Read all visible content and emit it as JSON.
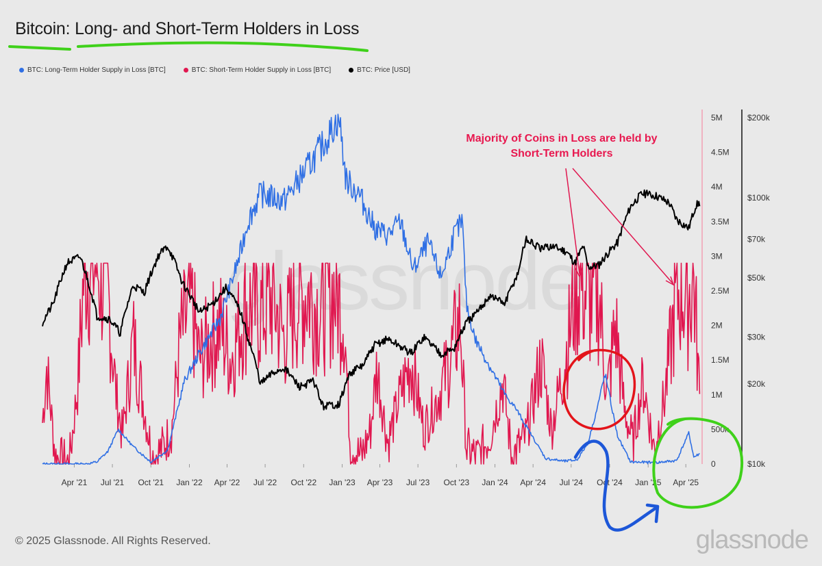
{
  "title": "Bitcoin: Long- and Short-Term Holders in Loss",
  "legend": [
    {
      "label": "BTC: Long-Term Holder Supply in Loss [BTC]",
      "color": "#2f6fe4"
    },
    {
      "label": "BTC: Short-Term Holder Supply in Loss [BTC]",
      "color": "#e0174f"
    },
    {
      "label": "BTC: Price [USD]",
      "color": "#000000"
    }
  ],
  "annotation": "Majority of Coins in Loss are held by Short-Term Holders",
  "watermark": "glassnode",
  "footer": "© 2025 Glassnode. All Rights Reserved.",
  "brand": "glassnode",
  "colors": {
    "lth": "#2f6fe4",
    "sth": "#e0174f",
    "price": "#000000",
    "axis_red": "#f2a0b4",
    "highlight_green": "#3fd11a",
    "highlight_red": "#e3141a",
    "highlight_blue": "#1d57d8"
  },
  "chart_data": {
    "type": "line",
    "x_ticks": [
      "Apr '21",
      "Jul '21",
      "Oct '21",
      "Jan '22",
      "Apr '22",
      "Jul '22",
      "Oct '22",
      "Jan '23",
      "Apr '23",
      "Jul '23",
      "Oct '23",
      "Jan '24",
      "Apr '24",
      "Jul '24",
      "Oct '24",
      "Jan '25",
      "Apr '25"
    ],
    "y_left_ticks": [
      "0",
      "500k",
      "1M",
      "1.5M",
      "2M",
      "2.5M",
      "3M",
      "3.5M",
      "4M",
      "4.5M",
      "5M"
    ],
    "y_left_range": [
      0,
      5000000
    ],
    "y_right_ticks": [
      "$10k",
      "$20k",
      "$30k",
      "$50k",
      "$70k",
      "$100k",
      "$200k"
    ],
    "y_right_range": [
      10000,
      200000
    ],
    "y_right_scale": "log",
    "x_range": [
      "2021-01-15",
      "2025-05-05"
    ],
    "series": [
      {
        "name": "BTC: Long-Term Holder Supply in Loss [BTC]",
        "x": [
          "2021-01-15",
          "2021-05-01",
          "2021-05-25",
          "2021-06-20",
          "2021-07-15",
          "2021-08-20",
          "2021-10-01",
          "2021-11-10",
          "2021-12-20",
          "2022-01-25",
          "2022-03-15",
          "2022-05-01",
          "2022-05-20",
          "2022-06-20",
          "2022-08-15",
          "2022-10-01",
          "2022-11-15",
          "2022-12-25",
          "2023-01-10",
          "2023-02-10",
          "2023-03-20",
          "2023-04-20",
          "2023-05-20",
          "2023-06-20",
          "2023-07-25",
          "2023-08-25",
          "2023-09-25",
          "2023-10-15",
          "2023-10-25",
          "2023-11-15",
          "2023-12-20",
          "2024-01-25",
          "2024-02-20",
          "2024-03-20",
          "2024-05-01",
          "2024-06-15",
          "2024-07-15",
          "2024-08-10",
          "2024-09-01",
          "2024-09-20",
          "2024-10-20",
          "2024-11-20",
          "2025-01-20",
          "2025-03-10",
          "2025-04-08",
          "2025-04-20",
          "2025-05-05"
        ],
        "values": [
          0,
          0,
          30000,
          180000,
          500000,
          250000,
          30000,
          200000,
          1200000,
          1600000,
          2100000,
          3000000,
          3500000,
          3900000,
          3800000,
          4200000,
          4600000,
          5000000,
          4100000,
          3900000,
          3400000,
          3300000,
          3500000,
          2800000,
          3200000,
          2700000,
          3300000,
          3500000,
          2300000,
          1800000,
          1400000,
          1000000,
          800000,
          500000,
          80000,
          40000,
          60000,
          300000,
          800000,
          1300000,
          400000,
          30000,
          20000,
          50000,
          450000,
          100000,
          150000
        ]
      },
      {
        "name": "BTC: Short-Term Holder Supply in Loss [BTC]",
        "x": [
          "2021-01-15",
          "2021-01-25",
          "2021-02-15",
          "2021-03-20",
          "2021-04-10",
          "2021-04-25",
          "2021-05-20",
          "2021-06-20",
          "2021-07-10",
          "2021-07-25",
          "2021-08-20",
          "2021-09-15",
          "2021-10-05",
          "2021-10-25",
          "2021-11-20",
          "2021-12-10",
          "2022-01-05",
          "2022-01-25",
          "2022-02-20",
          "2022-03-15",
          "2022-04-10",
          "2022-05-01",
          "2022-05-20",
          "2022-06-20",
          "2022-07-20",
          "2022-08-15",
          "2022-09-10",
          "2022-10-10",
          "2022-11-10",
          "2022-12-10",
          "2023-01-05",
          "2023-01-20",
          "2023-02-15",
          "2023-03-10",
          "2023-03-25",
          "2023-04-20",
          "2023-05-20",
          "2023-06-15",
          "2023-07-15",
          "2023-08-20",
          "2023-09-15",
          "2023-10-10",
          "2023-10-25",
          "2023-11-20",
          "2023-12-20",
          "2024-01-20",
          "2024-02-10",
          "2024-03-15",
          "2024-04-20",
          "2024-05-15",
          "2024-06-10",
          "2024-06-25",
          "2024-07-10",
          "2024-07-25",
          "2024-08-10",
          "2024-09-05",
          "2024-09-25",
          "2024-10-15",
          "2024-11-05",
          "2024-11-25",
          "2024-12-20",
          "2025-01-15",
          "2025-02-10",
          "2025-02-20",
          "2025-03-05",
          "2025-03-20",
          "2025-04-05",
          "2025-04-20",
          "2025-05-05"
        ],
        "values": [
          600000,
          1400000,
          100000,
          0,
          1200000,
          2900000,
          2900000,
          2500000,
          1000000,
          400000,
          1800000,
          800000,
          100000,
          200000,
          500000,
          1800000,
          2300000,
          1500000,
          1800000,
          2000000,
          1500000,
          2000000,
          2300000,
          2200000,
          2400000,
          1800000,
          2300000,
          2500000,
          2200000,
          2500000,
          2200000,
          300000,
          100000,
          500000,
          1400000,
          300000,
          1000000,
          1500000,
          500000,
          1000000,
          1500000,
          2100000,
          200000,
          100000,
          400000,
          1200000,
          100000,
          400000,
          1500000,
          500000,
          1300000,
          1800000,
          2500000,
          2700000,
          2300000,
          2500000,
          1000000,
          2000000,
          800000,
          300000,
          1200000,
          200000,
          1000000,
          1500000,
          2200000,
          2600000,
          2400000,
          2700000,
          800000
        ]
      },
      {
        "name": "BTC: Price [USD]",
        "x": [
          "2021-01-15",
          "2021-02-10",
          "2021-03-15",
          "2021-04-15",
          "2021-05-25",
          "2021-06-25",
          "2021-07-20",
          "2021-08-20",
          "2021-09-15",
          "2021-10-20",
          "2021-11-10",
          "2021-12-15",
          "2022-01-25",
          "2022-02-25",
          "2022-03-30",
          "2022-05-01",
          "2022-05-20",
          "2022-06-20",
          "2022-07-20",
          "2022-08-15",
          "2022-09-20",
          "2022-10-25",
          "2022-11-15",
          "2022-12-25",
          "2023-01-20",
          "2023-02-20",
          "2023-03-20",
          "2023-04-20",
          "2023-06-15",
          "2023-07-15",
          "2023-08-25",
          "2023-09-25",
          "2023-10-25",
          "2023-11-20",
          "2023-12-20",
          "2024-01-25",
          "2024-02-25",
          "2024-03-15",
          "2024-04-20",
          "2024-05-15",
          "2024-06-20",
          "2024-07-10",
          "2024-07-30",
          "2024-08-10",
          "2024-09-05",
          "2024-09-30",
          "2024-10-20",
          "2024-11-20",
          "2024-12-17",
          "2025-01-20",
          "2025-02-20",
          "2025-03-10",
          "2025-04-08",
          "2025-04-25",
          "2025-05-05"
        ],
        "values": [
          34000,
          40000,
          57000,
          60000,
          36000,
          35000,
          31000,
          47000,
          44000,
          61000,
          66000,
          48000,
          37000,
          40000,
          46000,
          38000,
          30000,
          20000,
          22000,
          23000,
          19500,
          20500,
          16500,
          16800,
          22000,
          23500,
          28000,
          29500,
          26000,
          30000,
          26000,
          27000,
          34000,
          37000,
          43000,
          40000,
          52000,
          70000,
          64000,
          66000,
          63000,
          57000,
          66000,
          55000,
          56000,
          63000,
          68000,
          93000,
          104000,
          102000,
          96000,
          83000,
          77000,
          94000,
          96000
        ]
      }
    ]
  }
}
